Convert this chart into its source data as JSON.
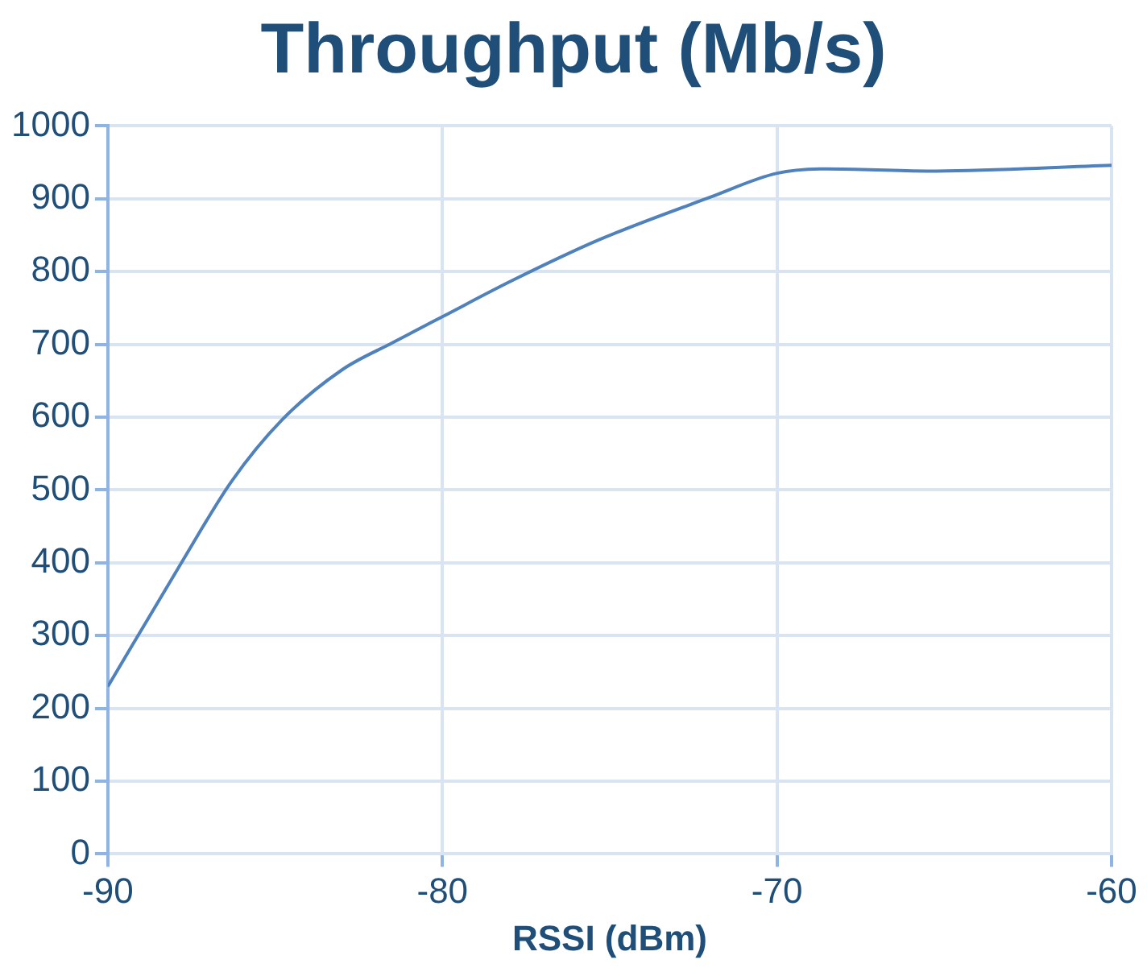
{
  "chart_data": {
    "type": "line",
    "title": "Throughput (Mb/s)",
    "xlabel": "RSSI (dBm)",
    "x": [
      -90,
      -87.8,
      -86.3,
      -84.8,
      -83,
      -81.5,
      -80,
      -77.9,
      -75.3,
      -72,
      -70,
      -68.5,
      -65.5,
      -60
    ],
    "series": [
      {
        "color": "#4f81bd",
        "values": [
          230,
          400,
          512,
          596,
          665,
          702,
          738,
          788,
          844,
          902,
          935,
          941,
          938,
          946
        ]
      }
    ],
    "xlim": [
      -90,
      -60
    ],
    "xticks": [
      -90,
      -80,
      -70,
      -60
    ],
    "ylim": [
      0,
      1000
    ],
    "yticks": [
      0,
      100,
      200,
      300,
      400,
      500,
      600,
      700,
      800,
      900,
      1000
    ],
    "grid": true,
    "legend": false,
    "marker": "none",
    "line_style": "solid"
  }
}
